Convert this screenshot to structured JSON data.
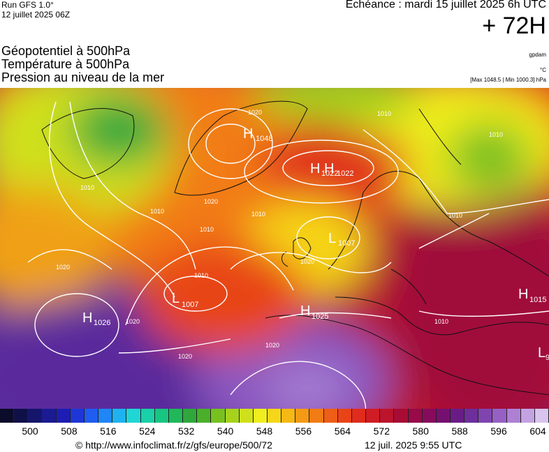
{
  "header": {
    "run_label": "Run GFS 1.0°",
    "run_date": "12 juillet 2025 06Z",
    "valid_time": "Echéance : mardi 15 juillet 2025 6h UTC",
    "lead_time": "+ 72H"
  },
  "titles": {
    "line1": "Géopotentiel à 500hPa",
    "line2": "Température à 500hPa",
    "line3": "Pression au niveau de la mer"
  },
  "side_labels": {
    "source": "gpdam",
    "unit": "°C",
    "minmax": "[Max 1048.5 | Min 1000.3] hPa"
  },
  "pressure_systems": [
    {
      "type": "H",
      "value": "1048"
    },
    {
      "type": "H",
      "value": "1022"
    },
    {
      "type": "H",
      "value": "1022"
    },
    {
      "type": "L",
      "value": "1007"
    },
    {
      "type": "L",
      "value": "1007"
    },
    {
      "type": "H",
      "value": "1026"
    },
    {
      "type": "H",
      "value": "1025"
    },
    {
      "type": "H",
      "value": "1015"
    },
    {
      "type": "L",
      "value": "9"
    }
  ],
  "isobar_labels": [
    "1020",
    "1010",
    "1010",
    "1010",
    "1020",
    "1010",
    "1010",
    "1010",
    "1020",
    "1020",
    "1020",
    "1010",
    "1010",
    "1020",
    "1020",
    "1010"
  ],
  "colorbar": {
    "colors": [
      "#0b0b2a",
      "#101048",
      "#15156b",
      "#1a1a92",
      "#1d1db5",
      "#1e36d8",
      "#1f5cf0",
      "#1f86f5",
      "#1fb2f0",
      "#1fd6d6",
      "#1ad0a8",
      "#18c683",
      "#20b85a",
      "#2ea83c",
      "#4ab02a",
      "#78c020",
      "#a6d21c",
      "#cfe01c",
      "#f0ee1e",
      "#f6d618",
      "#f6b815",
      "#f59a14",
      "#f27c14",
      "#ee5e16",
      "#e84418",
      "#e02c1c",
      "#d01c24",
      "#bc142c",
      "#a80c34",
      "#980a48",
      "#880a5c",
      "#761070",
      "#6a1c86",
      "#6e2e9c",
      "#8044b0",
      "#9660c4",
      "#ae80d4",
      "#c4a2e2",
      "#d8c4ee"
    ],
    "ticks": [
      "500",
      "508",
      "516",
      "524",
      "532",
      "540",
      "548",
      "556",
      "564",
      "572",
      "580",
      "588",
      "596",
      "604"
    ]
  },
  "footer": {
    "url": "© http://www.infoclimat.fr/z/gfs/europe/500/72",
    "timestamp": "12 juil. 2025  9:55 UTC"
  }
}
